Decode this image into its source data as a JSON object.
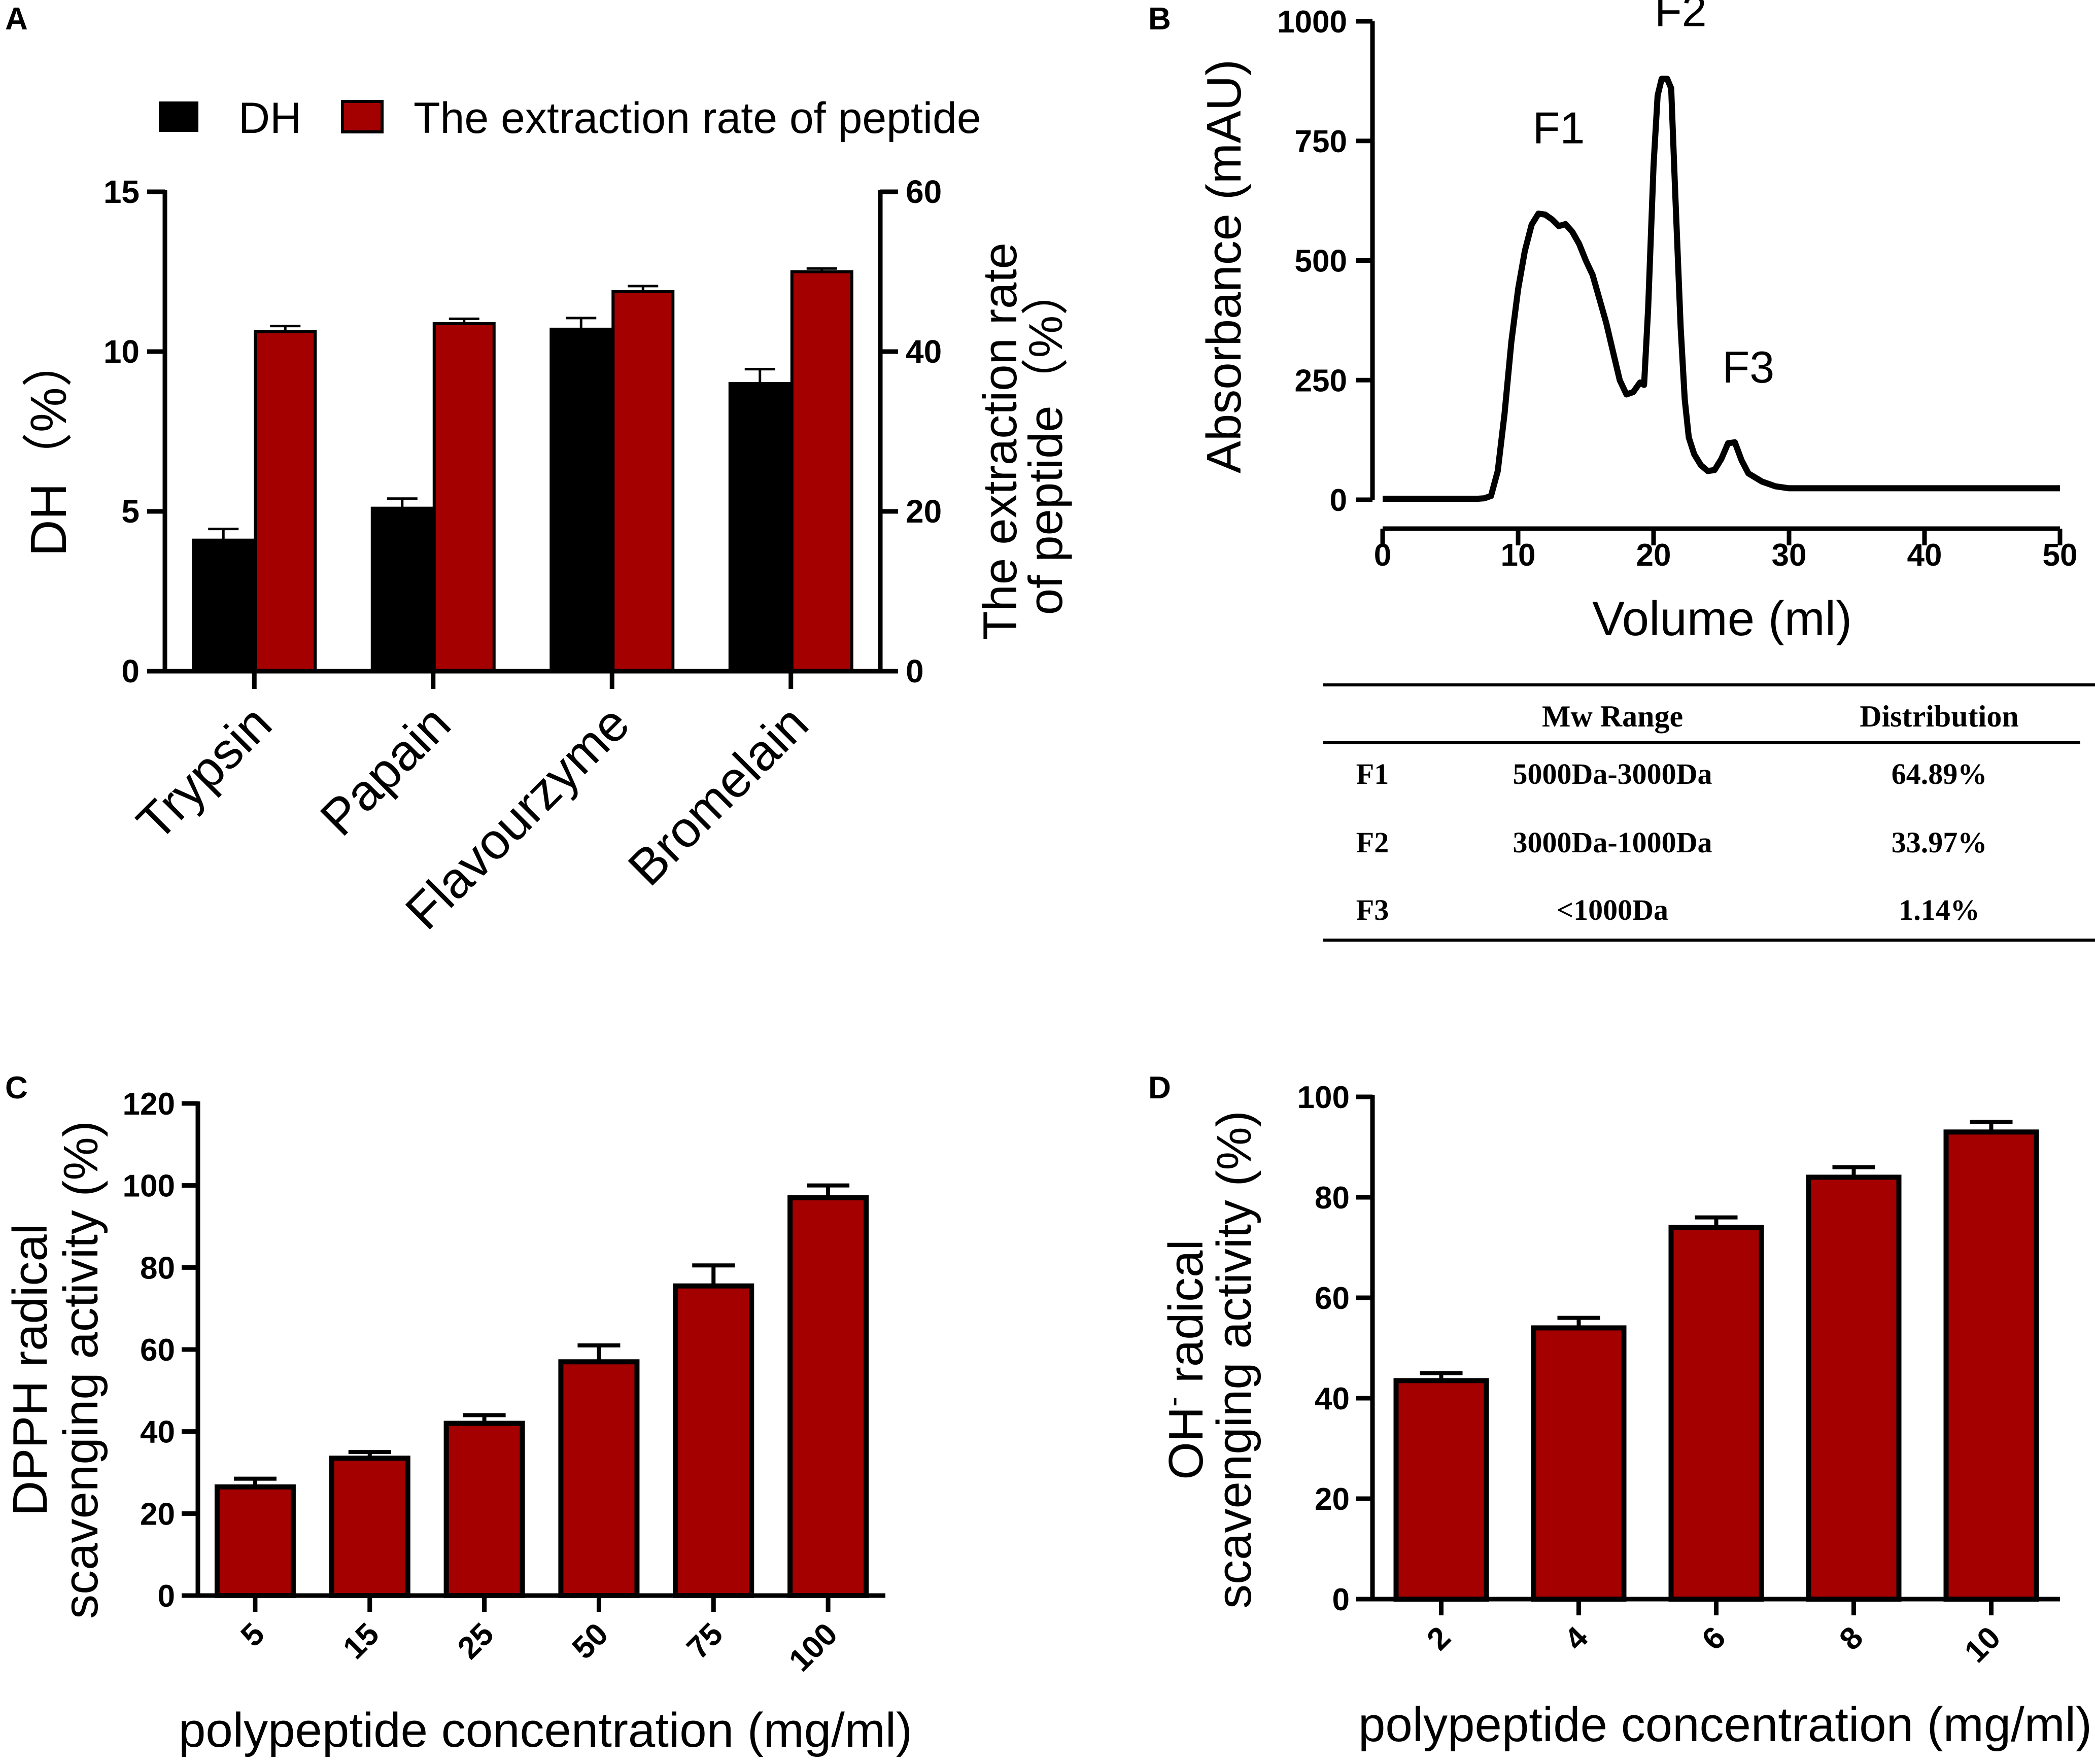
{
  "colors": {
    "dh": "#000000",
    "red": "#a40000",
    "axis": "#000000"
  },
  "panels": {
    "A": {
      "letter": "A"
    },
    "B": {
      "letter": "B"
    },
    "C": {
      "letter": "C"
    },
    "D": {
      "letter": "D"
    }
  },
  "chart_data": [
    {
      "panel": "A",
      "type": "bar",
      "categories": [
        "Trypsin",
        "Papain",
        "Flavourzyme",
        "Bromelain"
      ],
      "series": [
        {
          "name": "DH",
          "axis": "left",
          "color": "#000000",
          "values": [
            4.1,
            5.1,
            10.7,
            9.0
          ],
          "errors": [
            0.35,
            0.3,
            0.35,
            0.45
          ]
        },
        {
          "name": "The extraction rate of peptide",
          "axis": "right",
          "color": "#a40000",
          "values": [
            42.5,
            43.5,
            47.5,
            50.0
          ],
          "errors": [
            0.7,
            0.6,
            0.7,
            0.4
          ]
        }
      ],
      "ylabel": "DH（%）",
      "ylabel2_line1": "The extraction rate",
      "ylabel2_line2": "of peptide（%）",
      "ylim": [
        0,
        15
      ],
      "yticks": [
        "0",
        "5",
        "10",
        "15"
      ],
      "y2lim": [
        0,
        60
      ],
      "y2ticks": [
        "0",
        "20",
        "40",
        "60"
      ],
      "legend_placement": "top"
    },
    {
      "panel": "B",
      "type": "line",
      "xlabel": "Volume (ml)",
      "ylabel": "Absorbance (mAU)",
      "xlim": [
        0,
        50
      ],
      "xticks": [
        "0",
        "10",
        "20",
        "30",
        "40",
        "50"
      ],
      "ylim": [
        0,
        1000
      ],
      "yticks": [
        "0",
        "250",
        "500",
        "750",
        "1000"
      ],
      "x": [
        0,
        7,
        7.5,
        8,
        8.5,
        9,
        9.5,
        10,
        10.5,
        11,
        11.5,
        12,
        12.5,
        13,
        13.5,
        14,
        14.5,
        15,
        15.5,
        16,
        16.5,
        17,
        17.5,
        18,
        18.5,
        19,
        19.3,
        19.6,
        20,
        20.3,
        20.6,
        21,
        21.3,
        21.6,
        22,
        22.3,
        22.6,
        23,
        23.5,
        24,
        24.5,
        25,
        25.5,
        26,
        26.5,
        27,
        28,
        29,
        30,
        35,
        40,
        45,
        50
      ],
      "y": [
        2,
        2,
        3,
        8,
        60,
        180,
        330,
        440,
        520,
        575,
        598,
        596,
        586,
        572,
        576,
        560,
        535,
        500,
        470,
        420,
        370,
        310,
        250,
        220,
        225,
        245,
        240,
        400,
        700,
        845,
        880,
        880,
        860,
        640,
        360,
        210,
        130,
        95,
        72,
        60,
        62,
        85,
        118,
        120,
        82,
        55,
        38,
        28,
        24,
        24,
        24,
        24,
        24
      ],
      "peak_labels": [
        "F1",
        "F2",
        "F3"
      ],
      "peak_label_pos": [
        [
          13,
          745
        ],
        [
          22,
          990
        ],
        [
          27,
          245
        ]
      ]
    },
    {
      "panel": "B-table",
      "type": "table",
      "columns": [
        "",
        "Mw Range",
        "Distribution"
      ],
      "rows": [
        [
          "F1",
          "5000Da-3000Da",
          "64.89%"
        ],
        [
          "F2",
          "3000Da-1000Da",
          "33.97%"
        ],
        [
          "F3",
          "<1000Da",
          "1.14%"
        ]
      ]
    },
    {
      "panel": "C",
      "type": "bar",
      "categories": [
        "5",
        "15",
        "25",
        "50",
        "75",
        "100"
      ],
      "values": [
        26.5,
        33.5,
        42.0,
        57.0,
        75.5,
        97.0
      ],
      "errors": [
        2.0,
        1.5,
        2.0,
        4.0,
        5.0,
        3.0
      ],
      "color": "#a40000",
      "xlabel": "polypeptide concentration (mg/ml)",
      "ylabel_line1": "DPPH radical",
      "ylabel_line2": "scavenging activity (%)",
      "ylim": [
        0,
        120
      ],
      "yticks": [
        "0",
        "20",
        "40",
        "60",
        "80",
        "100",
        "120"
      ]
    },
    {
      "panel": "D",
      "type": "bar",
      "categories": [
        "2",
        "4",
        "6",
        "8",
        "10"
      ],
      "values": [
        43.5,
        54.0,
        74.0,
        84.0,
        93.0
      ],
      "errors": [
        1.5,
        2.0,
        2.0,
        2.0,
        2.0
      ],
      "color": "#a40000",
      "xlabel": "polypeptide concentration (mg/ml)",
      "ylabel_line1_main": "OH",
      "ylabel_line1_sup": "-",
      "ylabel_line1_rest": " radical",
      "ylabel_line2": "scavenging activity (%)",
      "ylim": [
        0,
        100
      ],
      "yticks": [
        "0",
        "20",
        "40",
        "60",
        "80",
        "100"
      ]
    }
  ]
}
